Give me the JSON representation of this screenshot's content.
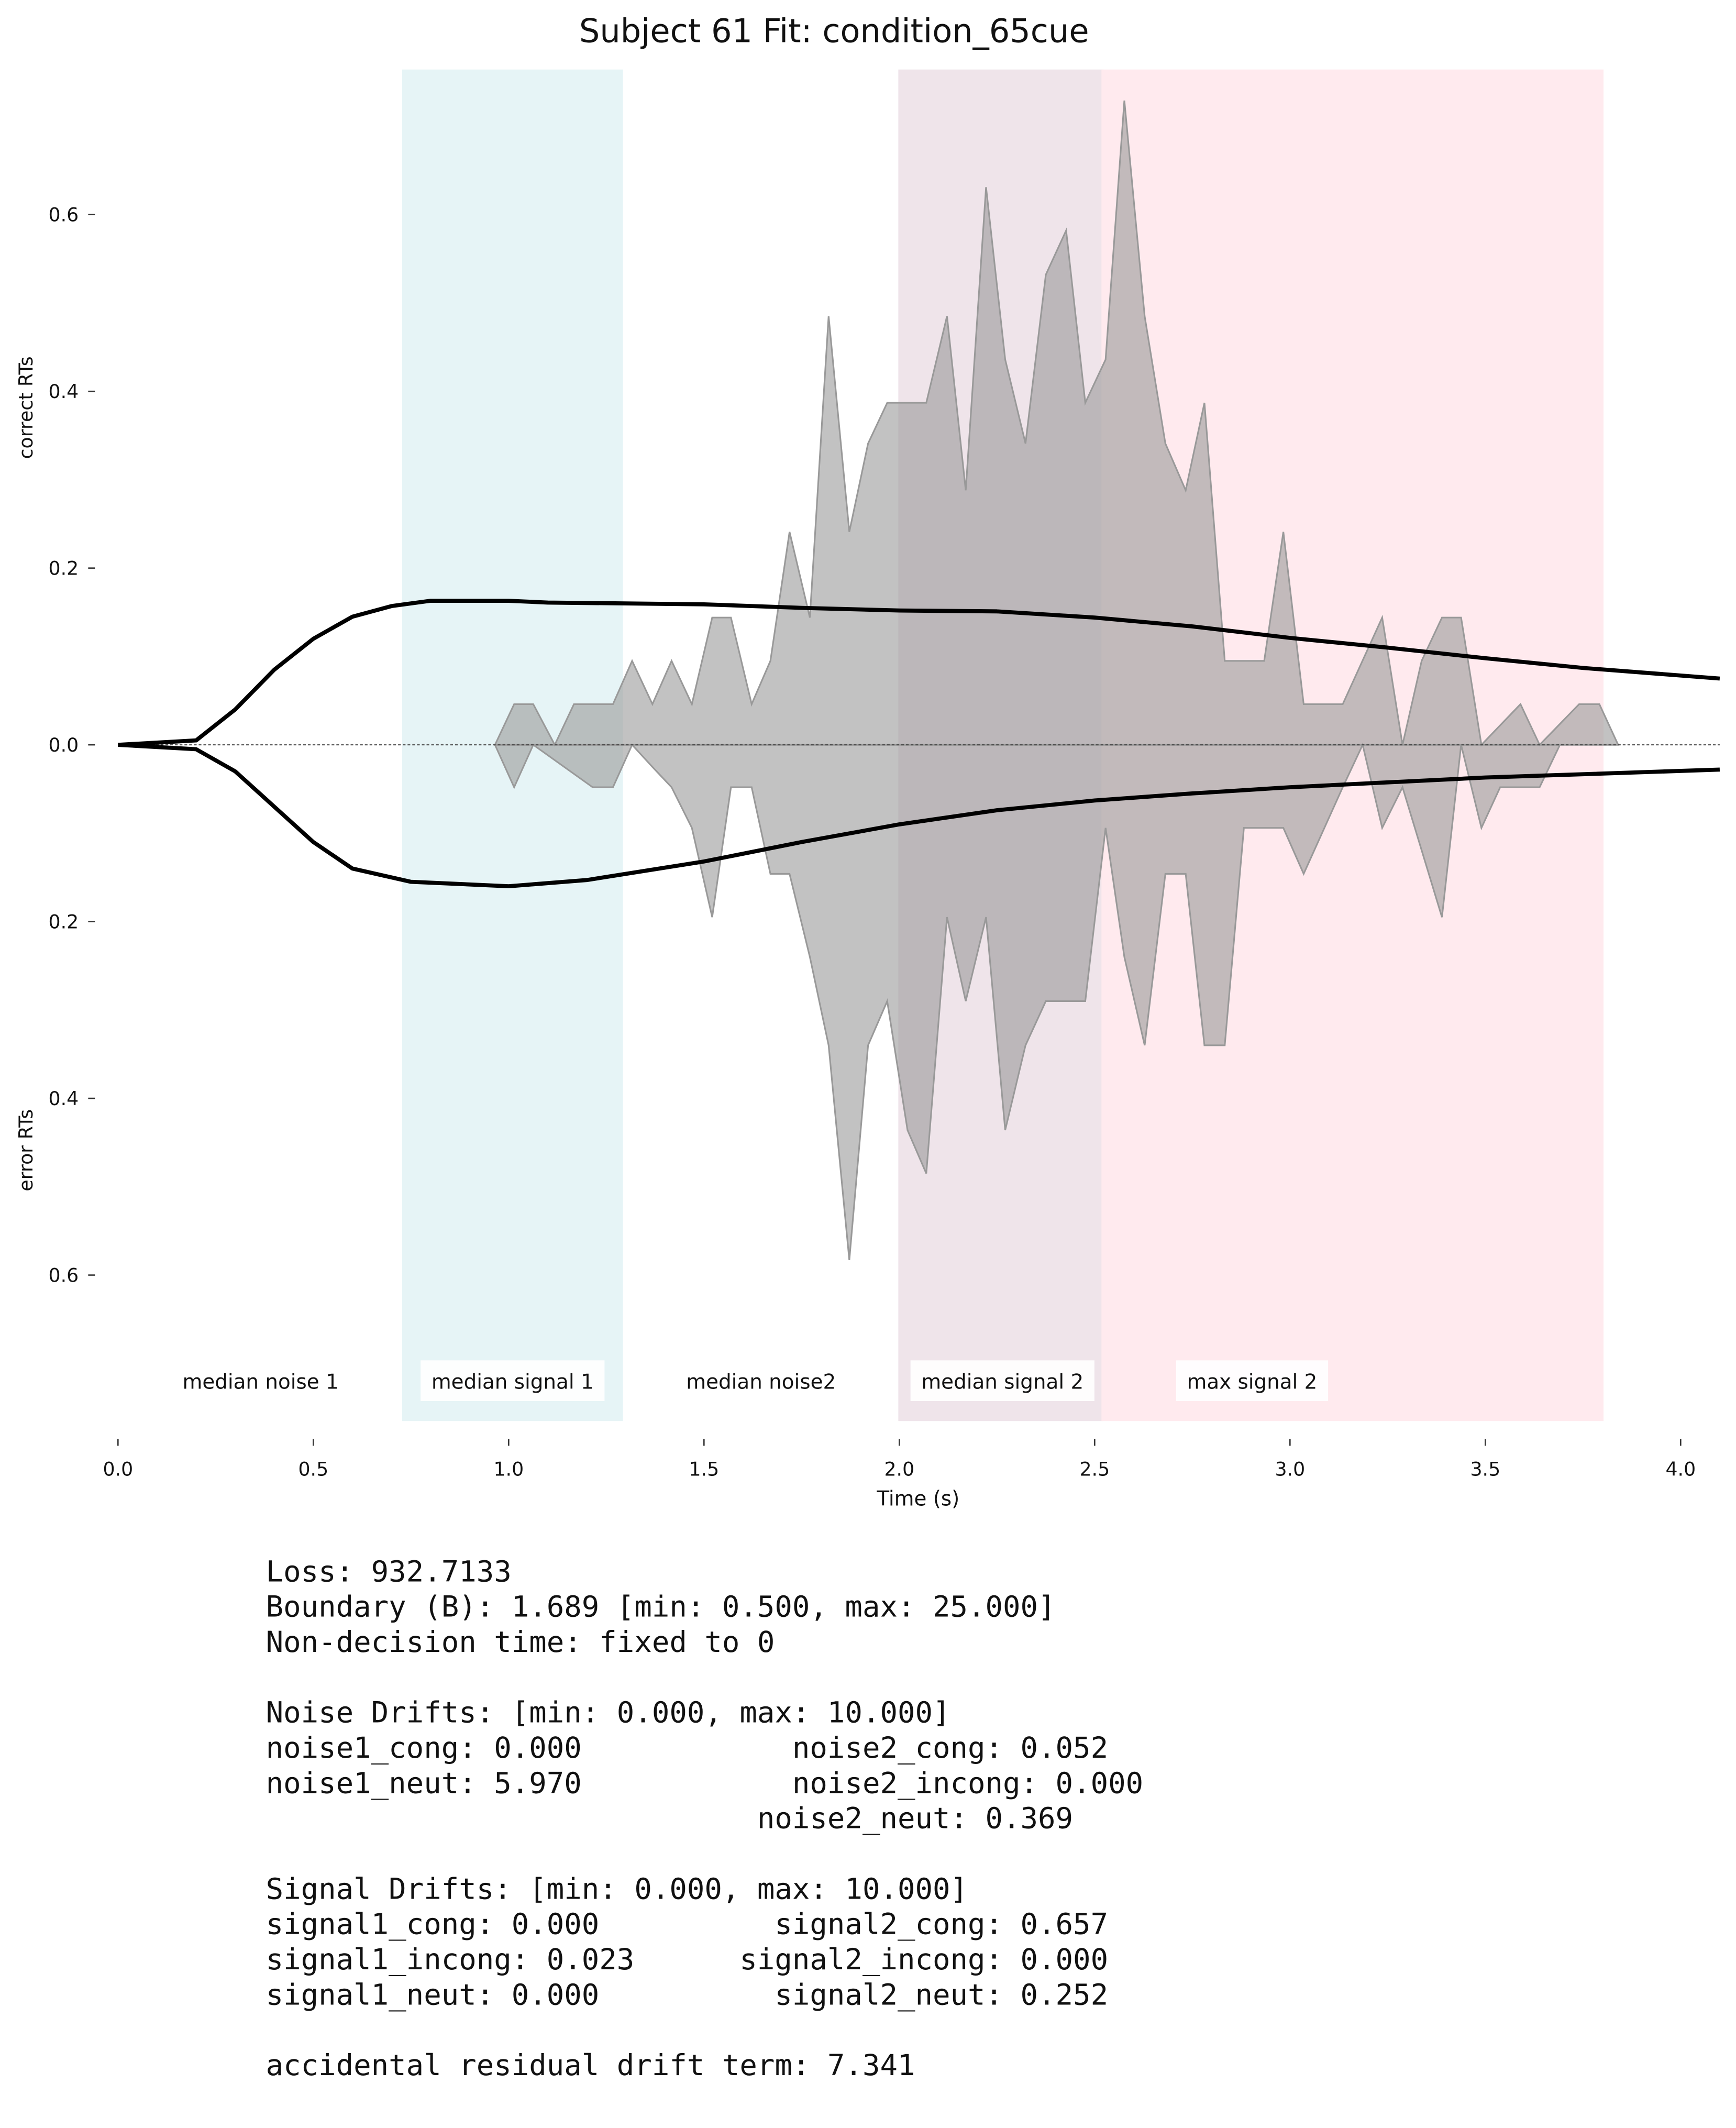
{
  "chart_data": {
    "type": "mirrored-area",
    "title": "Subject 61 Fit: condition_65cue",
    "x_label": "Time (s)",
    "y_label_upper": "correct RTs",
    "y_label_lower": "error RTs",
    "xlim": [
      0,
      4.1
    ],
    "ylim": [
      -0.764,
      0.763
    ],
    "xticks": [
      {
        "value": 0,
        "label": "0.0"
      },
      0.5,
      {
        "value": 1,
        "label": "1.0"
      },
      1.5,
      {
        "value": 2,
        "label": "2.0"
      },
      2.5,
      {
        "value": 3,
        "label": "3.0"
      },
      3.5,
      {
        "value": 4,
        "label": "4.0"
      }
    ],
    "yticks": [
      {
        "value": -0.6,
        "label": "0.6"
      },
      {
        "value": -0.4,
        "label": "0.4"
      },
      {
        "value": -0.2,
        "label": "0.2"
      },
      {
        "value": 0,
        "label": "0.0"
      },
      {
        "value": 0.2,
        "label": "0.2"
      },
      {
        "value": 0.4,
        "label": "0.4"
      },
      {
        "value": 0.6,
        "label": "0.6"
      }
    ],
    "regions": [
      {
        "start": 0.73,
        "end": 1.29,
        "color": "#e6f4f6"
      },
      {
        "start": 2.0,
        "end": 2.52,
        "color": "#efe4ea"
      },
      {
        "start": 2.52,
        "end": 3.8,
        "color": "#ffeaee"
      }
    ],
    "annotations": [
      {
        "text": "median noise 1",
        "x": 0.365
      },
      {
        "text": "median signal 1",
        "x": 1.01
      },
      {
        "text": "median noise2",
        "x": 1.646
      },
      {
        "text": "median signal 2",
        "x": 2.264
      },
      {
        "text": "max signal 2",
        "x": 2.903
      }
    ],
    "histograms": [
      {
        "color": "#999999",
        "x": [
          0.965,
          1.014,
          1.063,
          1.118,
          1.167,
          1.267,
          1.316,
          1.368,
          1.417,
          1.469,
          1.521,
          1.569,
          1.622,
          1.67,
          1.719,
          1.771,
          1.819,
          1.872,
          1.92,
          1.969,
          2.069,
          2.122,
          2.17,
          2.222,
          2.271,
          2.323,
          2.375,
          2.427,
          2.476,
          2.528,
          2.576,
          2.628,
          2.681,
          2.733,
          2.781,
          2.833,
          2.934,
          2.983,
          3.035,
          3.135,
          3.236,
          3.288,
          3.337,
          3.389,
          3.438,
          3.49,
          3.59,
          3.639,
          3.74,
          3.792,
          3.84
        ],
        "values": [
          0,
          0.046,
          0.046,
          0,
          0.046,
          0.046,
          0.095,
          0.046,
          0.095,
          0.046,
          0.144,
          0.144,
          0.046,
          0.095,
          0.241,
          0.144,
          0.485,
          0.241,
          0.341,
          0.387,
          0.387,
          0.485,
          0.288,
          0.631,
          0.436,
          0.341,
          0.532,
          0.582,
          0.387,
          0.436,
          0.729,
          0.485,
          0.341,
          0.288,
          0.387,
          0.095,
          0.095,
          0.241,
          0.046,
          0.046,
          0.144,
          0,
          0.095,
          0.144,
          0.144,
          0,
          0.046,
          0,
          0.046,
          0.046,
          0
        ]
      },
      {
        "color": "#999999",
        "x": [
          0.965,
          1.014,
          1.063,
          1.215,
          1.267,
          1.316,
          1.368,
          1.417,
          1.469,
          1.521,
          1.569,
          1.622,
          1.67,
          1.719,
          1.771,
          1.819,
          1.872,
          1.92,
          1.969,
          2.021,
          2.069,
          2.122,
          2.17,
          2.222,
          2.271,
          2.323,
          2.375,
          2.476,
          2.528,
          2.576,
          2.628,
          2.681,
          2.733,
          2.781,
          2.833,
          2.882,
          2.934,
          2.983,
          3.035,
          3.135,
          3.186,
          3.236,
          3.288,
          3.389,
          3.438,
          3.49,
          3.538,
          3.639,
          3.691,
          3.84
        ],
        "values": [
          0,
          -0.048,
          0,
          -0.048,
          -0.048,
          0,
          -0.025,
          -0.048,
          -0.094,
          -0.195,
          -0.048,
          -0.048,
          -0.146,
          -0.146,
          -0.24,
          -0.34,
          -0.583,
          -0.34,
          -0.29,
          -0.436,
          -0.485,
          -0.195,
          -0.29,
          -0.195,
          -0.436,
          -0.34,
          -0.29,
          -0.29,
          -0.094,
          -0.24,
          -0.34,
          -0.146,
          -0.146,
          -0.34,
          -0.34,
          -0.094,
          -0.094,
          -0.094,
          -0.146,
          -0.048,
          0,
          -0.094,
          -0.048,
          -0.195,
          0,
          -0.094,
          -0.048,
          -0.048,
          0,
          0
        ]
      }
    ],
    "model_curves": [
      {
        "color": "#000000",
        "x": [
          0,
          0.2,
          0.3,
          0.4,
          0.5,
          0.6,
          0.7,
          0.8,
          1.0,
          1.1,
          1.3,
          1.5,
          1.75,
          2.0,
          2.25,
          2.5,
          2.75,
          3.0,
          3.25,
          3.5,
          3.75,
          4.1
        ],
        "values": [
          0,
          0.005,
          0.04,
          0.085,
          0.12,
          0.145,
          0.157,
          0.163,
          0.163,
          0.161,
          0.16,
          0.159,
          0.155,
          0.152,
          0.151,
          0.144,
          0.134,
          0.121,
          0.11,
          0.098,
          0.087,
          0.075
        ]
      },
      {
        "color": "#000000",
        "x": [
          0,
          0.2,
          0.3,
          0.4,
          0.5,
          0.6,
          0.75,
          1.0,
          1.2,
          1.5,
          1.75,
          2.0,
          2.25,
          2.5,
          2.75,
          3.0,
          3.5,
          4.1
        ],
        "values": [
          0,
          -0.005,
          -0.03,
          -0.07,
          -0.11,
          -0.14,
          -0.155,
          -0.16,
          -0.153,
          -0.132,
          -0.11,
          -0.09,
          -0.074,
          -0.063,
          -0.055,
          -0.048,
          -0.037,
          -0.028
        ]
      }
    ]
  },
  "stats": [
    [
      "Loss: 932.7133",
      "Boundary (B): 1.689 [min: 0.500, max: 25.000]",
      "Non-decision time: fixed to 0"
    ],
    [
      "Noise Drifts: [min: 0.000, max: 10.000]",
      "noise1_cong: 0.000            noise2_cong: 0.052",
      "noise1_neut: 5.970            noise2_incong: 0.000",
      "                            noise2_neut: 0.369"
    ],
    [
      "Signal Drifts: [min: 0.000, max: 10.000]",
      "signal1_cong: 0.000          signal2_cong: 0.657",
      "signal1_incong: 0.023      signal2_incong: 0.000",
      "signal1_neut: 0.000          signal2_neut: 0.252"
    ],
    [
      "accidental residual drift term: 7.341"
    ]
  ]
}
